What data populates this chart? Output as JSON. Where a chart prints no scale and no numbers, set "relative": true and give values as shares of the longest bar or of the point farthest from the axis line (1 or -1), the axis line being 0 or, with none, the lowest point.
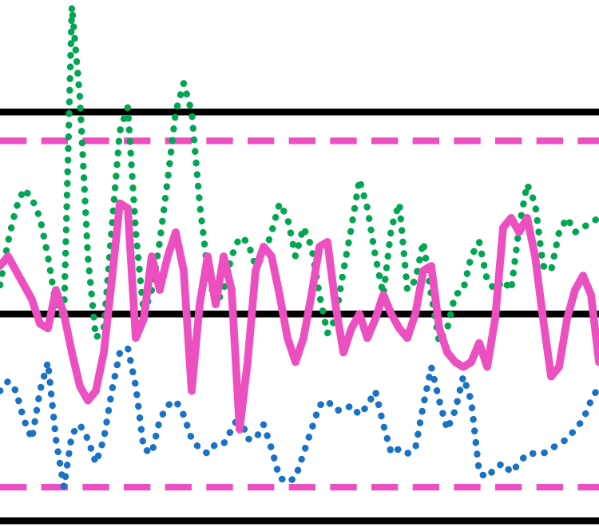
{
  "chart_data": {
    "type": "line",
    "relative": true,
    "legend": false,
    "marker": "none",
    "categories": [
      null,
      null,
      null,
      null,
      null,
      null,
      null,
      null,
      null,
      null,
      null,
      null,
      null,
      null,
      null,
      null,
      null,
      null,
      null,
      null,
      null,
      null,
      null,
      null,
      null,
      null,
      null,
      null,
      null,
      null,
      null,
      null,
      null,
      null,
      null,
      null,
      null,
      null,
      null,
      null,
      null,
      null,
      null,
      null,
      null,
      null,
      null,
      null,
      null,
      null,
      null,
      null,
      null,
      null,
      null,
      null,
      null,
      null,
      null,
      null,
      null,
      null,
      null,
      null,
      null,
      null,
      null,
      null,
      null,
      null,
      null,
      null,
      null,
      null,
      null,
      null
    ],
    "series": [
      {
        "color": "#00a651",
        "line_style": "dotted",
        "values": [
          0.42,
          0.51,
          0.58,
          0.62,
          0.6,
          0.56,
          0.48,
          0.38,
          0.35,
          1.0,
          0.81,
          0.48,
          0.31,
          0.33,
          0.54,
          0.74,
          0.79,
          0.53,
          0.36,
          0.41,
          0.51,
          0.64,
          0.78,
          0.84,
          0.78,
          0.59,
          0.45,
          0.38,
          0.41,
          0.48,
          0.52,
          0.51,
          0.46,
          0.48,
          0.53,
          0.59,
          0.56,
          0.48,
          0.54,
          0.5,
          0.4,
          0.32,
          0.35,
          0.45,
          0.54,
          0.64,
          0.58,
          0.48,
          0.4,
          0.54,
          0.59,
          0.41,
          0.43,
          0.51,
          0.4,
          0.3,
          0.33,
          0.4,
          0.41,
          0.48,
          0.51,
          0.43,
          0.41,
          0.43,
          0.41,
          0.54,
          0.63,
          0.59,
          0.46,
          0.45,
          0.53,
          0.56,
          0.53,
          0.54,
          0.55,
          0.56
        ]
      },
      {
        "color": "#1a72c6",
        "line_style": "dotted",
        "values": [
          0.2,
          0.22,
          0.2,
          0.14,
          0.1,
          0.2,
          0.26,
          0.1,
          0,
          0.11,
          0.13,
          0.1,
          0.05,
          0.1,
          0.2,
          0.28,
          0.29,
          0.21,
          0.08,
          0.07,
          0.14,
          0.17,
          0.18,
          0.15,
          0.1,
          0.08,
          0.07,
          0.09,
          0.09,
          0.12,
          0.15,
          0.1,
          0.1,
          0.13,
          0.08,
          0.02,
          0.01,
          0.02,
          0.07,
          0.12,
          0.17,
          0.18,
          0.16,
          0.16,
          0.17,
          0.15,
          0.17,
          0.2,
          0.13,
          0.07,
          0.08,
          0.07,
          0.08,
          0.17,
          0.25,
          0.18,
          0.12,
          0.16,
          0.23,
          0.18,
          0.03,
          0.02,
          0.04,
          0.05,
          0.03,
          0.05,
          0.07,
          0.07,
          0.07,
          0.08,
          0.09,
          0.1,
          0.12,
          0.14,
          0.18,
          0.21
        ]
      },
      {
        "color": "#ec4fbf",
        "line_style": "solid",
        "values": [
          0.46,
          0.48,
          0.45,
          0.42,
          0.39,
          0.34,
          0.33,
          0.41,
          0.36,
          0.28,
          0.21,
          0.18,
          0.2,
          0.28,
          0.43,
          0.59,
          0.58,
          0.31,
          0.35,
          0.48,
          0.41,
          0.48,
          0.53,
          0.45,
          0.2,
          0.38,
          0.48,
          0.38,
          0.48,
          0.41,
          0.12,
          0.26,
          0.45,
          0.5,
          0.48,
          0.4,
          0.31,
          0.26,
          0.31,
          0.4,
          0.5,
          0.51,
          0.38,
          0.28,
          0.33,
          0.36,
          0.31,
          0.35,
          0.4,
          0.36,
          0.33,
          0.31,
          0.36,
          0.45,
          0.46,
          0.33,
          0.28,
          0.26,
          0.25,
          0.26,
          0.3,
          0.25,
          0.35,
          0.54,
          0.56,
          0.53,
          0.56,
          0.48,
          0.35,
          0.23,
          0.25,
          0.35,
          0.41,
          0.44,
          0.4,
          0.26
        ]
      }
    ],
    "ref_lines": [
      {
        "axis": "y",
        "value": 0.78,
        "color": "#000000",
        "line_style": "solid"
      },
      {
        "axis": "y",
        "value": 0.72,
        "color": "#ec4fbf",
        "line_style": "dashed"
      },
      {
        "axis": "y",
        "value": 0.36,
        "color": "#000000",
        "line_style": "solid"
      },
      {
        "axis": "y",
        "value": 0,
        "color": "#ec4fbf",
        "line_style": "dashed"
      },
      {
        "axis": "y",
        "value": -0.07,
        "color": "#000000",
        "line_style": "solid"
      }
    ]
  }
}
